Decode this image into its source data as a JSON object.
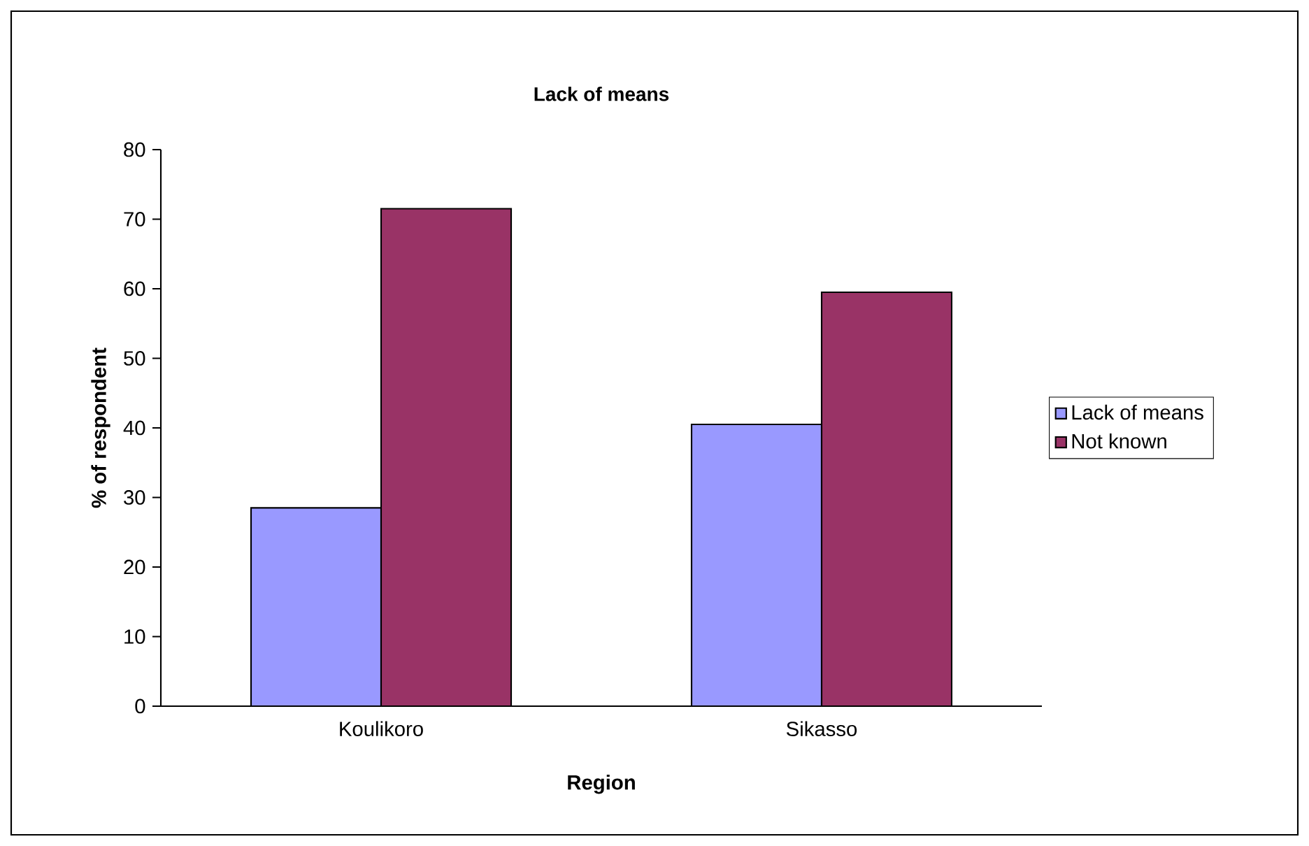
{
  "chart_data": {
    "type": "bar",
    "title": "Lack of means",
    "xlabel": "Region",
    "ylabel": "% of respondent",
    "categories": [
      "Koulikoro",
      "Sikasso"
    ],
    "series": [
      {
        "name": "Lack of means",
        "color": "#9999ff",
        "values": [
          28.5,
          40.5
        ]
      },
      {
        "name": "Not known",
        "color": "#993366",
        "values": [
          71.5,
          59.5
        ]
      }
    ],
    "ylim": [
      0,
      80
    ],
    "yticks": [
      0,
      10,
      20,
      30,
      40,
      50,
      60,
      70,
      80
    ],
    "grid": false,
    "legend": "right"
  }
}
